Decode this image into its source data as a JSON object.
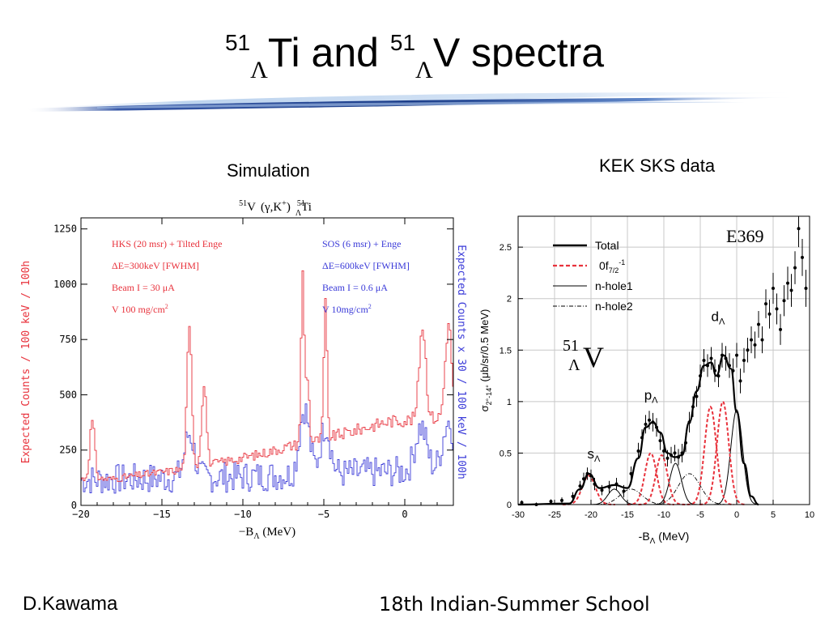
{
  "slide": {
    "title_mass_a": "51",
    "title_sub_a": "Λ",
    "title_text_a": "Ti and ",
    "title_mass_b": "51",
    "title_sub_b": "Λ",
    "title_text_b": "V spectra",
    "sim_caption": "Simulation",
    "kek_caption": "KEK SKS data",
    "author": "D.Kawama",
    "school": "18th Indian-Summer School"
  },
  "colors": {
    "hks": "#e8323c",
    "sos": "#3a3ad8",
    "banner_dark": "#1c3e8a",
    "banner_light": "#bcd3ee"
  },
  "chart_data": [
    {
      "type": "line",
      "reaction": {
        "target_mass": "51",
        "target": "V",
        "probe": "(γ,K",
        "probe_sup": "+",
        "probe_end": ")",
        "product_mass": "51",
        "product_sub": "Λ",
        "product": "Ti"
      },
      "xlabel": "−B",
      "xlabel_sub": "Λ",
      "xlabel_unit": " (MeV)",
      "ylabel": "Expected Counts / 100 keV / 100h",
      "ylabel_right": "Expected Counts x 30 / 100 keV / 100h",
      "xlim": [
        -20,
        3
      ],
      "ylim": [
        0,
        1300
      ],
      "x_ticks": [
        -20,
        -15,
        -10,
        -5,
        0
      ],
      "x_tick_labels": [
        "−20",
        "−15",
        "−10",
        "−5",
        "0"
      ],
      "y_ticks": [
        0,
        250,
        500,
        750,
        1000,
        1250
      ],
      "y_tick_labels": [
        "0",
        "250",
        "500",
        "750",
        "1000",
        "1250"
      ],
      "annotations_left": [
        "HKS (20 msr) + Tilted Enge",
        "ΔE=300keV [FWHM]",
        "Beam I = 30 μA",
        "V 100 mg/cm"
      ],
      "annotations_right": [
        "SOS (6 msr) + Enge",
        "ΔE=600keV [FWHM]",
        "Beam I = 0.6 μA",
        "V 10mg/cm"
      ],
      "annotation_sup": "2",
      "series": [
        {
          "name": "HKS (20 msr) + Tilted Enge",
          "color": "#e8323c",
          "baseline": [
            [
              -20,
              120
            ],
            [
              -18,
              120
            ],
            [
              -15,
              150
            ],
            [
              -13,
              170
            ],
            [
              -11,
              200
            ],
            [
              -9,
              230
            ],
            [
              -7,
              270
            ],
            [
              -5,
              300
            ],
            [
              -3,
              340
            ],
            [
              -1,
              380
            ],
            [
              1,
              390
            ],
            [
              3,
              400
            ]
          ],
          "peaks": [
            {
              "x": -19.3,
              "height": 260,
              "width": 0.15
            },
            {
              "x": -13.3,
              "height": 620,
              "width": 0.15
            },
            {
              "x": -12.4,
              "height": 380,
              "width": 0.15
            },
            {
              "x": -6.3,
              "height": 760,
              "width": 0.1
            },
            {
              "x": -6.0,
              "height": 300,
              "width": 0.1
            },
            {
              "x": -4.9,
              "height": 600,
              "width": 0.1
            },
            {
              "x": 1.1,
              "height": 430,
              "width": 0.2
            },
            {
              "x": 2.7,
              "height": 420,
              "width": 0.2
            }
          ]
        },
        {
          "name": "SOS (6 msr) + Enge",
          "color": "#3a3ad8",
          "baseline": [
            [
              -20,
              115
            ],
            [
              -10,
              130
            ],
            [
              3,
              160
            ]
          ],
          "peaks": [
            {
              "x": -13.3,
              "height": 200,
              "width": 0.3
            },
            {
              "x": -6.2,
              "height": 300,
              "width": 0.3
            },
            {
              "x": -4.9,
              "height": 220,
              "width": 0.3
            },
            {
              "x": 1.0,
              "height": 200,
              "width": 0.35
            },
            {
              "x": 2.7,
              "height": 220,
              "width": 0.35
            }
          ],
          "noise_amplitude": 70
        }
      ]
    },
    {
      "type": "scatter",
      "experiment": "E369",
      "nucleus_mass": "51",
      "nucleus_sub": "Λ",
      "nucleus": "V",
      "xlabel": "-B",
      "xlabel_sub": "Λ",
      "xlabel_unit": " (MeV)",
      "ylabel": "σ",
      "ylabel_sub": "2°-14°",
      "ylabel_unit": " (μb/sr/0.5 MeV)",
      "xlim": [
        -30,
        10
      ],
      "ylim": [
        0,
        2.8
      ],
      "x_ticks": [
        -30,
        -25,
        -20,
        -15,
        -10,
        -5,
        0,
        5,
        10
      ],
      "x_tick_labels": [
        "-30",
        "-25",
        "-20",
        "-15",
        "-10",
        "-5",
        "0",
        "5",
        "10"
      ],
      "y_ticks": [
        0,
        0.5,
        1,
        1.5,
        2,
        2.5
      ],
      "y_tick_labels": [
        "0",
        "0.5",
        "1",
        "1.5",
        "2",
        "2.5"
      ],
      "grid": true,
      "legend_position": "top-left",
      "legend": [
        {
          "label": "Total",
          "style": "thick-solid"
        },
        {
          "label": "0f",
          "sub": "7/2",
          "sup": "-1",
          "style": "red-dashed"
        },
        {
          "label": "n-hole1",
          "style": "thin-solid"
        },
        {
          "label": "n-hole2",
          "style": "dash-dot"
        }
      ],
      "peak_labels": [
        {
          "label": "s",
          "sub": "Λ",
          "x": -20.5,
          "y": 0.45
        },
        {
          "label": "p",
          "sub": "Λ",
          "x": -12.7,
          "y": 1.02
        },
        {
          "label": "d",
          "sub": "Λ",
          "x": -3.5,
          "y": 1.78
        }
      ],
      "components_0f": [
        {
          "x": -20.3,
          "height": 0.28,
          "sigma": 0.9
        },
        {
          "x": -11.8,
          "height": 0.5,
          "sigma": 0.8
        },
        {
          "x": -10.3,
          "height": 0.48,
          "sigma": 0.8
        },
        {
          "x": -3.6,
          "height": 0.95,
          "sigma": 0.8
        },
        {
          "x": -1.9,
          "height": 1.0,
          "sigma": 0.8
        }
      ],
      "components_hole1": [
        {
          "x": -16.8,
          "height": 0.15,
          "sigma": 0.9
        },
        {
          "x": -8.4,
          "height": 0.4,
          "sigma": 0.8
        },
        {
          "x": 0.0,
          "height": 0.92,
          "sigma": 0.8
        }
      ],
      "components_hole2": [
        {
          "x": -14.5,
          "height": 0.15,
          "sigma": 1.5
        },
        {
          "x": -6.5,
          "height": 0.3,
          "sigma": 1.5
        }
      ],
      "total_curve": [
        [
          -30,
          0
        ],
        [
          -23,
          0.01
        ],
        [
          -21.5,
          0.15
        ],
        [
          -20.3,
          0.3
        ],
        [
          -18.8,
          0.16
        ],
        [
          -16.8,
          0.19
        ],
        [
          -15,
          0.16
        ],
        [
          -13.5,
          0.45
        ],
        [
          -12.5,
          0.75
        ],
        [
          -11.5,
          0.8
        ],
        [
          -10.5,
          0.7
        ],
        [
          -9.5,
          0.5
        ],
        [
          -8.5,
          0.46
        ],
        [
          -7.5,
          0.48
        ],
        [
          -6.5,
          0.8
        ],
        [
          -5.5,
          1.1
        ],
        [
          -4.5,
          1.35
        ],
        [
          -3.5,
          1.38
        ],
        [
          -2.8,
          1.25
        ],
        [
          -1.8,
          1.45
        ],
        [
          -0.8,
          1.32
        ],
        [
          0,
          0.9
        ],
        [
          1,
          0.4
        ],
        [
          2,
          0.08
        ],
        [
          3,
          0
        ]
      ],
      "points": [
        {
          "x": -29.5,
          "y": 0.02,
          "err": 0.02
        },
        {
          "x": -27.5,
          "y": 0.0,
          "err": 0.02
        },
        {
          "x": -25.5,
          "y": 0.03,
          "err": 0.02
        },
        {
          "x": -24.0,
          "y": 0.04,
          "err": 0.03
        },
        {
          "x": -22.5,
          "y": 0.08,
          "err": 0.04
        },
        {
          "x": -21.5,
          "y": 0.18,
          "err": 0.05
        },
        {
          "x": -21.0,
          "y": 0.25,
          "err": 0.06
        },
        {
          "x": -20.5,
          "y": 0.3,
          "err": 0.06
        },
        {
          "x": -20.0,
          "y": 0.28,
          "err": 0.06
        },
        {
          "x": -19.5,
          "y": 0.2,
          "err": 0.06
        },
        {
          "x": -18.5,
          "y": 0.14,
          "err": 0.05
        },
        {
          "x": -17.5,
          "y": 0.17,
          "err": 0.06
        },
        {
          "x": -16.5,
          "y": 0.2,
          "err": 0.06
        },
        {
          "x": -15.5,
          "y": 0.13,
          "err": 0.06
        },
        {
          "x": -14.5,
          "y": 0.3,
          "err": 0.07
        },
        {
          "x": -13.5,
          "y": 0.52,
          "err": 0.08
        },
        {
          "x": -13.0,
          "y": 0.65,
          "err": 0.08
        },
        {
          "x": -12.5,
          "y": 0.78,
          "err": 0.09
        },
        {
          "x": -12.0,
          "y": 0.82,
          "err": 0.09
        },
        {
          "x": -11.5,
          "y": 0.8,
          "err": 0.09
        },
        {
          "x": -11.0,
          "y": 0.75,
          "err": 0.09
        },
        {
          "x": -10.5,
          "y": 0.62,
          "err": 0.09
        },
        {
          "x": -10.0,
          "y": 0.52,
          "err": 0.08
        },
        {
          "x": -9.5,
          "y": 0.45,
          "err": 0.08
        },
        {
          "x": -9.0,
          "y": 0.48,
          "err": 0.08
        },
        {
          "x": -8.5,
          "y": 0.5,
          "err": 0.08
        },
        {
          "x": -8.0,
          "y": 0.46,
          "err": 0.08
        },
        {
          "x": -7.5,
          "y": 0.5,
          "err": 0.09
        },
        {
          "x": -7.0,
          "y": 0.6,
          "err": 0.09
        },
        {
          "x": -6.5,
          "y": 0.8,
          "err": 0.1
        },
        {
          "x": -6.0,
          "y": 0.95,
          "err": 0.1
        },
        {
          "x": -5.5,
          "y": 1.05,
          "err": 0.1
        },
        {
          "x": -5.0,
          "y": 1.25,
          "err": 0.11
        },
        {
          "x": -4.5,
          "y": 1.4,
          "err": 0.11
        },
        {
          "x": -4.0,
          "y": 1.35,
          "err": 0.11
        },
        {
          "x": -3.5,
          "y": 1.42,
          "err": 0.11
        },
        {
          "x": -3.0,
          "y": 1.3,
          "err": 0.11
        },
        {
          "x": -2.5,
          "y": 1.25,
          "err": 0.11
        },
        {
          "x": -2.0,
          "y": 1.45,
          "err": 0.12
        },
        {
          "x": -1.5,
          "y": 1.42,
          "err": 0.12
        },
        {
          "x": -1.0,
          "y": 1.35,
          "err": 0.12
        },
        {
          "x": -0.5,
          "y": 1.3,
          "err": 0.12
        },
        {
          "x": 0.0,
          "y": 1.45,
          "err": 0.12
        },
        {
          "x": 0.5,
          "y": 1.2,
          "err": 0.12
        },
        {
          "x": 1.0,
          "y": 1.4,
          "err": 0.12
        },
        {
          "x": 1.5,
          "y": 1.5,
          "err": 0.12
        },
        {
          "x": 2.0,
          "y": 1.6,
          "err": 0.13
        },
        {
          "x": 2.5,
          "y": 1.55,
          "err": 0.13
        },
        {
          "x": 3.0,
          "y": 1.75,
          "err": 0.13
        },
        {
          "x": 3.5,
          "y": 1.6,
          "err": 0.13
        },
        {
          "x": 4.0,
          "y": 1.95,
          "err": 0.14
        },
        {
          "x": 4.5,
          "y": 1.85,
          "err": 0.14
        },
        {
          "x": 5.0,
          "y": 2.1,
          "err": 0.15
        },
        {
          "x": 5.5,
          "y": 1.9,
          "err": 0.15
        },
        {
          "x": 6.0,
          "y": 1.7,
          "err": 0.15
        },
        {
          "x": 6.5,
          "y": 1.98,
          "err": 0.15
        },
        {
          "x": 7.0,
          "y": 2.15,
          "err": 0.16
        },
        {
          "x": 7.5,
          "y": 2.08,
          "err": 0.16
        },
        {
          "x": 8.0,
          "y": 2.3,
          "err": 0.16
        },
        {
          "x": 8.5,
          "y": 2.68,
          "err": 0.18
        },
        {
          "x": 9.0,
          "y": 2.4,
          "err": 0.18
        },
        {
          "x": 9.5,
          "y": 2.1,
          "err": 0.18
        }
      ]
    }
  ]
}
